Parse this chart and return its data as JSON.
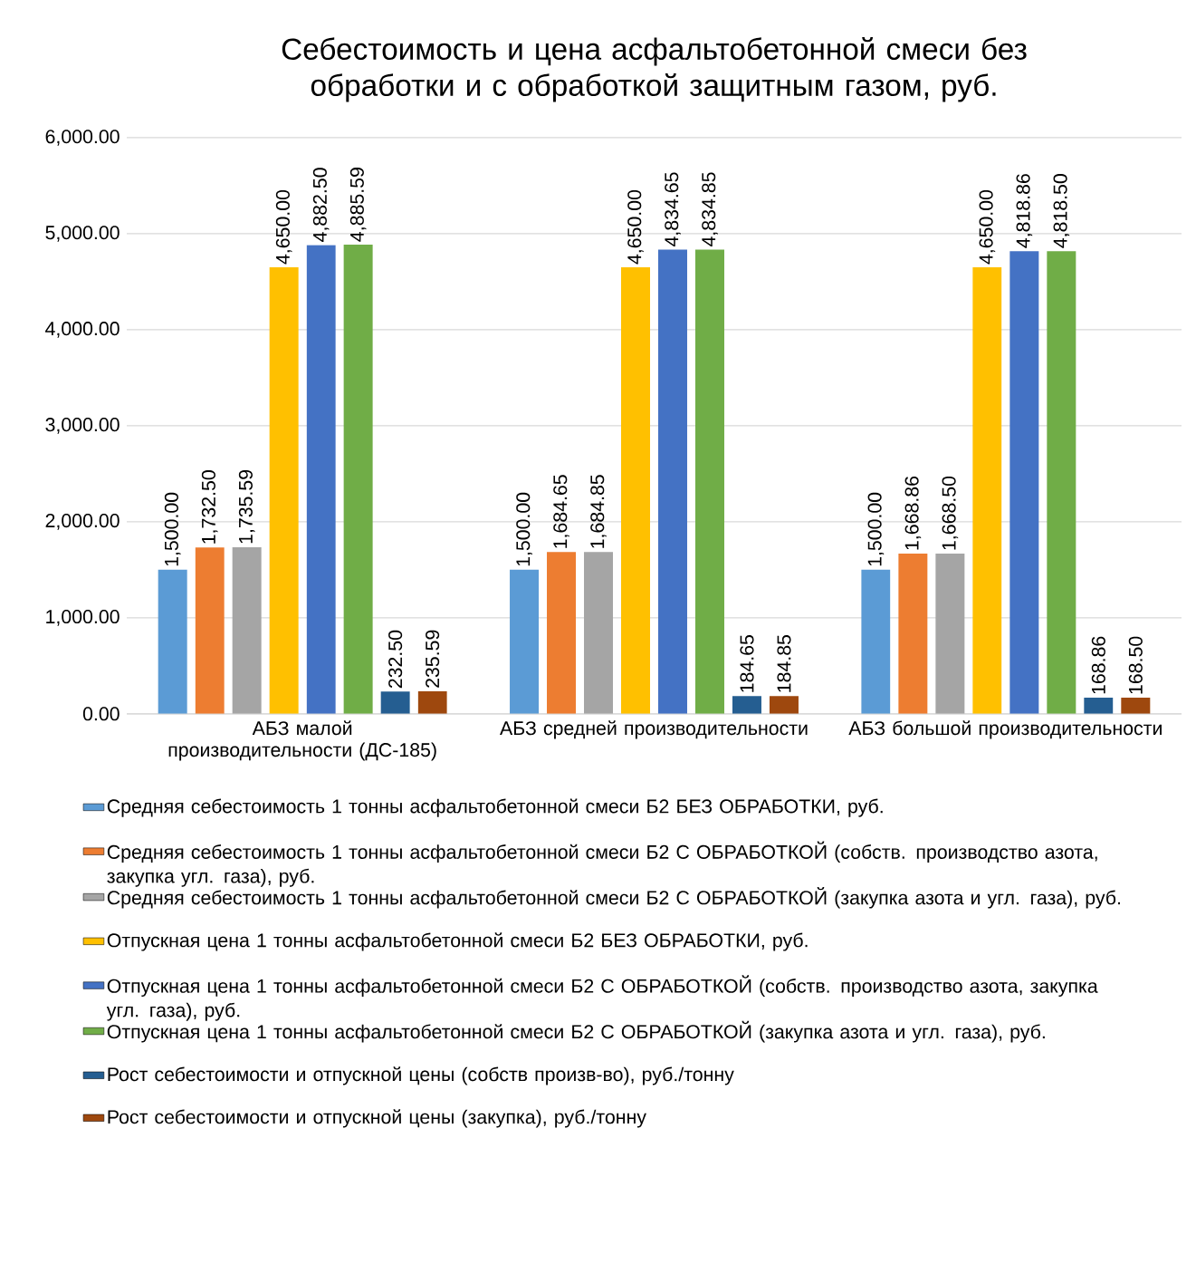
{
  "chart_data": {
    "type": "bar",
    "title": "Себестоимость и цена асфальтобетонной смеси без обработки и с обработкой защитным газом, руб.",
    "categories": [
      "АБЗ малой производительности (ДС-185)",
      "АБЗ средней производительности",
      "АБЗ большой производительности"
    ],
    "ylim": [
      0,
      6000
    ],
    "yticks": [
      {
        "value": 0,
        "label": "0.00"
      },
      {
        "value": 1000,
        "label": "1,000.00"
      },
      {
        "value": 2000,
        "label": "2,000.00"
      },
      {
        "value": 3000,
        "label": "3,000.00"
      },
      {
        "value": 4000,
        "label": "4,000.00"
      },
      {
        "value": 5000,
        "label": "5,000.00"
      },
      {
        "value": 6000,
        "label": "6,000.00"
      }
    ],
    "grid": "y",
    "legend": "bottom",
    "series": [
      {
        "name": "Средняя себестоимость 1 тонны асфальтобетонной смеси Б2 БЕЗ ОБРАБОТКИ, руб.",
        "color": "#5b9bd5",
        "values": [
          1500,
          1500,
          1500
        ],
        "value_labels": [
          "1,500.00",
          "1,500.00",
          "1,500.00"
        ]
      },
      {
        "name": "Средняя себестоимость 1 тонны асфальтобетонной смеси Б2 С ОБРАБОТКОЙ (собств. производство азота, закупка угл. газа), руб.",
        "color": "#ed7d31",
        "values": [
          1732.5,
          1684.65,
          1668.86
        ],
        "value_labels": [
          "1,732.50",
          "1,684.65",
          "1,668.86"
        ]
      },
      {
        "name": "Средняя себестоимость 1 тонны асфальтобетонной смеси Б2 С ОБРАБОТКОЙ (закупка азота и угл. газа), руб.",
        "color": "#a5a5a5",
        "values": [
          1735.59,
          1684.85,
          1668.5
        ],
        "value_labels": [
          "1,735.59",
          "1,684.85",
          "1,668.50"
        ]
      },
      {
        "name": "Отпускная цена 1 тонны асфальтобетонной смеси Б2 БЕЗ ОБРАБОТКИ, руб.",
        "color": "#ffc000",
        "values": [
          4650,
          4650,
          4650
        ],
        "value_labels": [
          "4,650.00",
          "4,650.00",
          "4,650.00"
        ]
      },
      {
        "name": "Отпускная цена 1 тонны асфальтобетонной смеси Б2 С ОБРАБОТКОЙ (собств. производство азота, закупка угл. газа), руб.",
        "color": "#4472c4",
        "values": [
          4882.5,
          4834.65,
          4818.86
        ],
        "value_labels": [
          "4,882.50",
          "4,834.65",
          "4,818.86"
        ]
      },
      {
        "name": "Отпускная цена 1 тонны асфальтобетонной смеси Б2 С ОБРАБОТКОЙ (закупка азота и угл. газа), руб.",
        "color": "#70ad47",
        "values": [
          4885.59,
          4834.85,
          4818.5
        ],
        "value_labels": [
          "4,885.59",
          "4,834.85",
          "4,818.50"
        ]
      },
      {
        "name": "Рост себестоимости и отпускной цены (собств произв-во), руб./тонну",
        "color": "#255e91",
        "values": [
          232.5,
          184.65,
          168.86
        ],
        "value_labels": [
          "232.50",
          "184.65",
          "168.86"
        ]
      },
      {
        "name": "Рост себестоимости и отпускной цены (закупка), руб./тонну",
        "color": "#9e480e",
        "values": [
          235.59,
          184.85,
          168.5
        ],
        "value_labels": [
          "235.59",
          "184.85",
          "168.50"
        ]
      }
    ]
  }
}
